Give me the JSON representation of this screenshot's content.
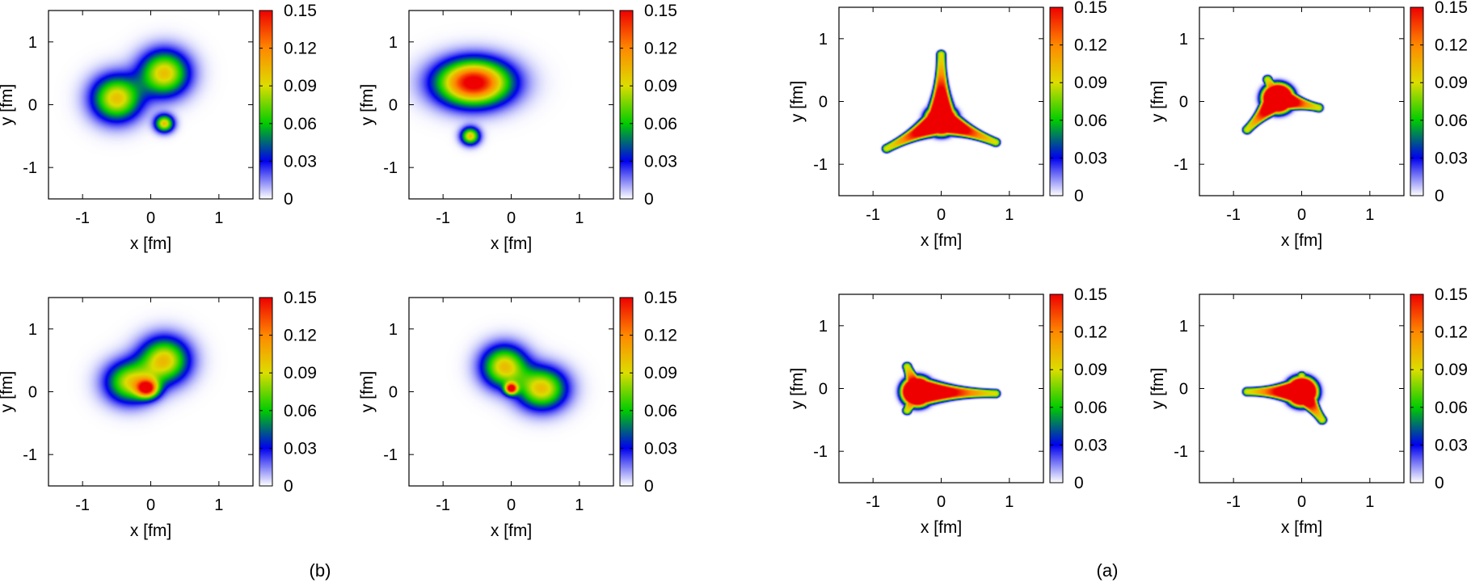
{
  "chart_data": [
    {
      "type": "heatmap",
      "group": "b",
      "xlabel": "x [fm]",
      "ylabel": "y [fm]",
      "xlim": [
        -1.5,
        1.5
      ],
      "ylim": [
        -1.5,
        1.5
      ],
      "xticks": [
        "-1",
        "0",
        "1"
      ],
      "yticks": [
        "-1",
        "0",
        "1"
      ],
      "colorbar": {
        "range": [
          0,
          0.15
        ],
        "ticks": [
          "0",
          "0.03",
          "0.06",
          "0.09",
          "0.12",
          "0.15"
        ]
      },
      "blobs": [
        {
          "x": -0.5,
          "y": 0.1,
          "sx": 0.24,
          "sy": 0.24,
          "peak": 0.1
        },
        {
          "x": 0.2,
          "y": 0.5,
          "sx": 0.24,
          "sy": 0.24,
          "peak": 0.1
        },
        {
          "x": 0.2,
          "y": -0.3,
          "sx": 0.09,
          "sy": 0.09,
          "peak": 0.1
        }
      ]
    },
    {
      "type": "heatmap",
      "group": "b",
      "xlabel": "x [fm]",
      "ylabel": "y [fm]",
      "xlim": [
        -1.5,
        1.5
      ],
      "ylim": [
        -1.5,
        1.5
      ],
      "xticks": [
        "-1",
        "0",
        "1"
      ],
      "yticks": [
        "-1",
        "0",
        "1"
      ],
      "colorbar": {
        "range": [
          0,
          0.15
        ],
        "ticks": [
          "0",
          "0.03",
          "0.06",
          "0.09",
          "0.12",
          "0.15"
        ]
      },
      "blobs": [
        {
          "x": -0.55,
          "y": 0.35,
          "sx": 0.36,
          "sy": 0.24,
          "peak": 0.16
        },
        {
          "x": -0.6,
          "y": -0.5,
          "sx": 0.09,
          "sy": 0.09,
          "peak": 0.1
        }
      ]
    },
    {
      "type": "heatmap",
      "group": "b",
      "xlabel": "x [fm]",
      "ylabel": "y [fm]",
      "xlim": [
        -1.5,
        1.5
      ],
      "ylim": [
        -1.5,
        1.5
      ],
      "xticks": [
        "-1",
        "0",
        "1"
      ],
      "yticks": [
        "-1",
        "0",
        "1"
      ],
      "colorbar": {
        "range": [
          0,
          0.15
        ],
        "ticks": [
          "0",
          "0.03",
          "0.06",
          "0.09",
          "0.12",
          "0.15"
        ]
      },
      "blobs": [
        {
          "x": -0.3,
          "y": 0.15,
          "sx": 0.24,
          "sy": 0.22,
          "peak": 0.09
        },
        {
          "x": 0.2,
          "y": 0.5,
          "sx": 0.24,
          "sy": 0.24,
          "peak": 0.1
        },
        {
          "x": -0.05,
          "y": 0.05,
          "sx": 0.11,
          "sy": 0.1,
          "peak": 0.12
        }
      ]
    },
    {
      "type": "heatmap",
      "group": "b",
      "xlabel": "x [fm]",
      "ylabel": "y [fm]",
      "xlim": [
        -1.5,
        1.5
      ],
      "ylim": [
        -1.5,
        1.5
      ],
      "xticks": [
        "-1",
        "0",
        "1"
      ],
      "yticks": [
        "-1",
        "0",
        "1"
      ],
      "colorbar": {
        "range": [
          0,
          0.15
        ],
        "ticks": [
          "0",
          "0.03",
          "0.06",
          "0.09",
          "0.12",
          "0.15"
        ]
      },
      "blobs": [
        {
          "x": -0.1,
          "y": 0.4,
          "sx": 0.22,
          "sy": 0.22,
          "peak": 0.1
        },
        {
          "x": 0.45,
          "y": 0.05,
          "sx": 0.24,
          "sy": 0.22,
          "peak": 0.1
        },
        {
          "x": 0.0,
          "y": 0.05,
          "sx": 0.06,
          "sy": 0.06,
          "peak": 0.14
        }
      ]
    },
    {
      "type": "heatmap",
      "group": "a",
      "xlabel": "x [fm]",
      "ylabel": "y [fm]",
      "xlim": [
        -1.5,
        1.5
      ],
      "ylim": [
        -1.5,
        1.5
      ],
      "xticks": [
        "-1",
        "0",
        "1"
      ],
      "yticks": [
        "-1",
        "0",
        "1"
      ],
      "colorbar": {
        "range": [
          0,
          0.15
        ],
        "ticks": [
          "0",
          "0.03",
          "0.06",
          "0.09",
          "0.12",
          "0.15"
        ]
      },
      "junction": [
        0.0,
        -0.3
      ],
      "arms": [
        [
          0.0,
          0.75
        ],
        [
          -0.8,
          -0.75
        ],
        [
          0.8,
          -0.65
        ]
      ]
    },
    {
      "type": "heatmap",
      "group": "a",
      "xlabel": "x [fm]",
      "ylabel": "y [fm]",
      "xlim": [
        -1.5,
        1.5
      ],
      "ylim": [
        -1.5,
        1.5
      ],
      "xticks": [
        "-1",
        "0",
        "1"
      ],
      "yticks": [
        "-1",
        "0",
        "1"
      ],
      "colorbar": {
        "range": [
          0,
          0.15
        ],
        "ticks": [
          "0",
          "0.03",
          "0.06",
          "0.09",
          "0.12",
          "0.15"
        ]
      },
      "junction": [
        -0.35,
        0.05
      ],
      "arms": [
        [
          -0.5,
          0.35
        ],
        [
          -0.8,
          -0.45
        ],
        [
          0.25,
          -0.1
        ]
      ]
    },
    {
      "type": "heatmap",
      "group": "a",
      "xlabel": "x [fm]",
      "ylabel": "y [fm]",
      "xlim": [
        -1.5,
        1.5
      ],
      "ylim": [
        -1.5,
        1.5
      ],
      "xticks": [
        "-1",
        "0",
        "1"
      ],
      "yticks": [
        "-1",
        "0",
        "1"
      ],
      "colorbar": {
        "range": [
          0,
          0.15
        ],
        "ticks": [
          "0",
          "0.03",
          "0.06",
          "0.09",
          "0.12",
          "0.15"
        ]
      },
      "junction": [
        -0.35,
        -0.05
      ],
      "arms": [
        [
          -0.5,
          0.35
        ],
        [
          -0.5,
          -0.35
        ],
        [
          0.8,
          -0.08
        ]
      ]
    },
    {
      "type": "heatmap",
      "group": "a",
      "xlabel": "x [fm]",
      "ylabel": "y [fm]",
      "xlim": [
        -1.5,
        1.5
      ],
      "ylim": [
        -1.5,
        1.5
      ],
      "xticks": [
        "-1",
        "0",
        "1"
      ],
      "yticks": [
        "-1",
        "0",
        "1"
      ],
      "colorbar": {
        "range": [
          0,
          0.15
        ],
        "ticks": [
          "0",
          "0.03",
          "0.06",
          "0.09",
          "0.12",
          "0.15"
        ]
      },
      "junction": [
        0.0,
        -0.05
      ],
      "arms": [
        [
          0.0,
          0.2
        ],
        [
          -0.8,
          -0.05
        ],
        [
          0.3,
          -0.5
        ]
      ]
    }
  ],
  "panel_labels": {
    "left": "(b)",
    "right": "(a)"
  },
  "colormap_stops": [
    "#ffffff",
    "#0000ee",
    "#00cc00",
    "#dddd00",
    "#ff8800",
    "#ee0000"
  ]
}
